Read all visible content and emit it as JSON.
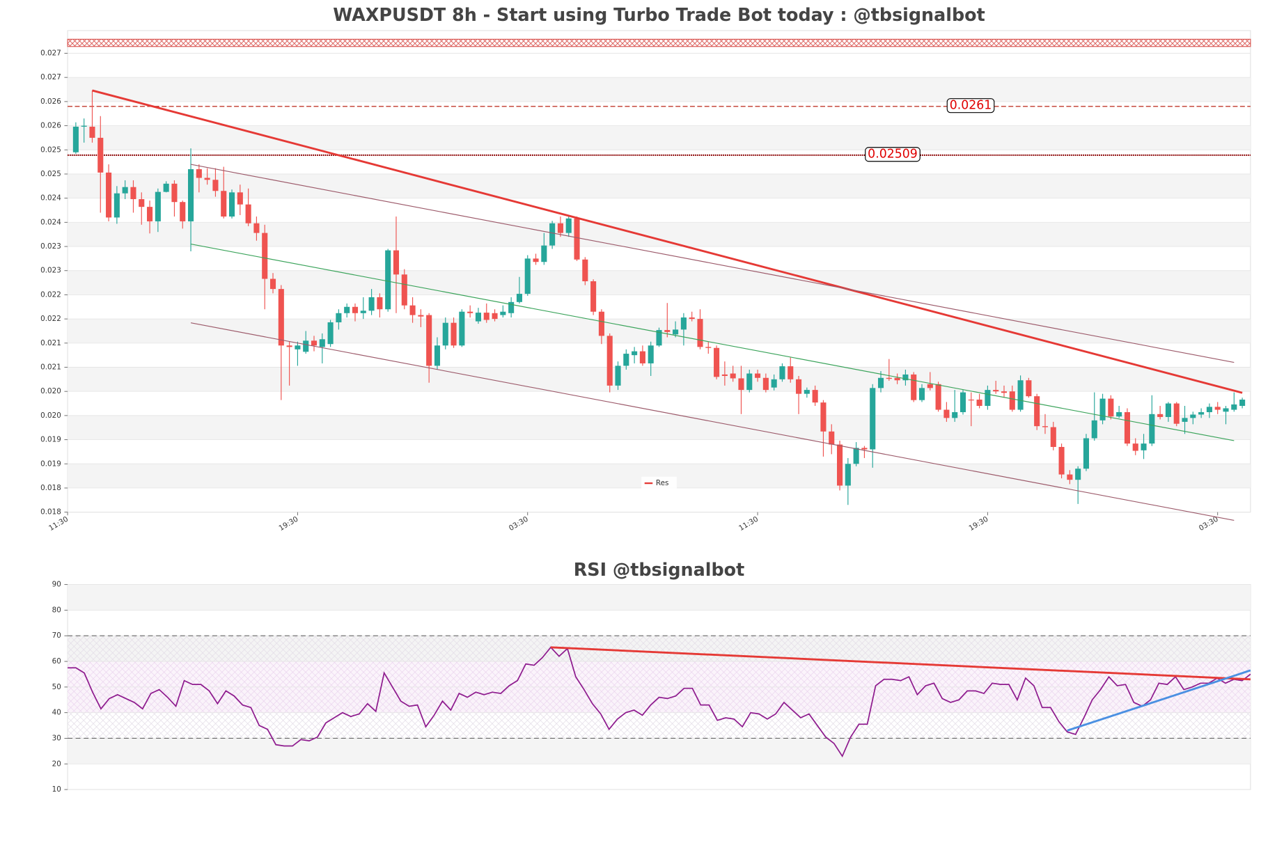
{
  "chart_data": [
    {
      "type": "candlestick",
      "title": "WAXPUSDT 8h - Start using Turbo Trade Bot today : @tbsignalbot",
      "up_color": "#26a69a",
      "down_color": "#ef5350",
      "xlim": [
        -1,
        143
      ],
      "xticks": [
        {
          "value": -1,
          "label": "11:30"
        },
        {
          "value": 27,
          "label": "19:30"
        },
        {
          "value": 55,
          "label": "03:30"
        },
        {
          "value": 83,
          "label": "11:30"
        },
        {
          "value": 111,
          "label": "19:30"
        },
        {
          "value": 139,
          "label": "03:30"
        }
      ],
      "ylim": [
        0.0177,
        0.02767
      ],
      "yticks": [
        {
          "value": 0.0177,
          "label": "0.018"
        },
        {
          "value": 0.0182,
          "label": "0.018"
        },
        {
          "value": 0.0187,
          "label": "0.019"
        },
        {
          "value": 0.0192,
          "label": "0.019"
        },
        {
          "value": 0.0197,
          "label": "0.020"
        },
        {
          "value": 0.0202,
          "label": "0.020"
        },
        {
          "value": 0.0207,
          "label": "0.021"
        },
        {
          "value": 0.0212,
          "label": "0.021"
        },
        {
          "value": 0.0217,
          "label": "0.022"
        },
        {
          "value": 0.0222,
          "label": "0.022"
        },
        {
          "value": 0.0227,
          "label": "0.023"
        },
        {
          "value": 0.0232,
          "label": "0.023"
        },
        {
          "value": 0.0237,
          "label": "0.024"
        },
        {
          "value": 0.0242,
          "label": "0.024"
        },
        {
          "value": 0.0247,
          "label": "0.025"
        },
        {
          "value": 0.0252,
          "label": "0.025"
        },
        {
          "value": 0.0257,
          "label": "0.026"
        },
        {
          "value": 0.0262,
          "label": "0.026"
        },
        {
          "value": 0.0267,
          "label": "0.027"
        },
        {
          "value": 0.0272,
          "label": "0.027"
        }
      ],
      "grid": true,
      "legend": "lower center",
      "zone": [
        0.02734,
        0.02749
      ],
      "zone_color": "#d9534f",
      "hlines": [
        {
          "value": 0.0261,
          "color": "#c0392b",
          "style": "dashed"
        },
        {
          "value": 0.02509,
          "color": "#8b0000",
          "style": "dotted"
        }
      ],
      "trendlines": [
        {
          "name": "Res",
          "color": "#e53935",
          "width": 2.5,
          "x": [
            2,
            142
          ],
          "y": [
            0.02643,
            0.02017
          ]
        },
        {
          "color": "#9c5a6a",
          "width": 1,
          "x": [
            14,
            141
          ],
          "y": [
            0.0249,
            0.0208
          ]
        },
        {
          "color": "#3aa35a",
          "width": 1,
          "x": [
            14,
            141
          ],
          "y": [
            0.02325,
            0.01918
          ]
        },
        {
          "color": "#9c5a6a",
          "width": 1,
          "x": [
            14,
            141
          ],
          "y": [
            0.02162,
            0.01753
          ]
        }
      ],
      "candles": [
        [
          0.02515,
          0.02577,
          0.02512,
          0.02568
        ],
        [
          0.02568,
          0.02585,
          0.02535,
          0.0257
        ],
        [
          0.02568,
          0.02643,
          0.02535,
          0.02545
        ],
        [
          0.02545,
          0.0259,
          0.0239,
          0.02473
        ],
        [
          0.02473,
          0.0249,
          0.02372,
          0.0238
        ],
        [
          0.0238,
          0.02445,
          0.02367,
          0.0243
        ],
        [
          0.0243,
          0.02457,
          0.02418,
          0.02443
        ],
        [
          0.02443,
          0.02457,
          0.0239,
          0.02418
        ],
        [
          0.02418,
          0.02432,
          0.02365,
          0.02402
        ],
        [
          0.02402,
          0.02415,
          0.02347,
          0.02372
        ],
        [
          0.02372,
          0.0244,
          0.0235,
          0.02433
        ],
        [
          0.02433,
          0.02455,
          0.02432,
          0.0245
        ],
        [
          0.0245,
          0.02457,
          0.02382,
          0.02412
        ],
        [
          0.02412,
          0.02415,
          0.02357,
          0.02372
        ],
        [
          0.02372,
          0.02523,
          0.0231,
          0.0248
        ],
        [
          0.0248,
          0.0249,
          0.02432,
          0.02462
        ],
        [
          0.02462,
          0.02482,
          0.02448,
          0.02458
        ],
        [
          0.02458,
          0.02482,
          0.02423,
          0.02435
        ],
        [
          0.02435,
          0.02485,
          0.02378,
          0.02382
        ],
        [
          0.02382,
          0.02438,
          0.02378,
          0.02432
        ],
        [
          0.02432,
          0.02448,
          0.02385,
          0.02407
        ],
        [
          0.02407,
          0.0244,
          0.02362,
          0.02368
        ],
        [
          0.02368,
          0.02382,
          0.02332,
          0.02348
        ],
        [
          0.02348,
          0.02365,
          0.0219,
          0.02253
        ],
        [
          0.02253,
          0.02265,
          0.02223,
          0.02232
        ],
        [
          0.02232,
          0.0224,
          0.02002,
          0.02115
        ],
        [
          0.02115,
          0.02123,
          0.02032,
          0.02112
        ],
        [
          0.02107,
          0.02123,
          0.02073,
          0.02115
        ],
        [
          0.02102,
          0.02145,
          0.02098,
          0.02125
        ],
        [
          0.02125,
          0.02135,
          0.02103,
          0.02115
        ],
        [
          0.02112,
          0.0214,
          0.02078,
          0.02128
        ],
        [
          0.02118,
          0.02168,
          0.02112,
          0.02163
        ],
        [
          0.02163,
          0.0219,
          0.02148,
          0.02182
        ],
        [
          0.02182,
          0.02202,
          0.02173,
          0.02195
        ],
        [
          0.02195,
          0.02202,
          0.02165,
          0.02182
        ],
        [
          0.02182,
          0.02215,
          0.0217,
          0.02187
        ],
        [
          0.02187,
          0.02232,
          0.02178,
          0.02215
        ],
        [
          0.02215,
          0.02223,
          0.02173,
          0.0219
        ],
        [
          0.0219,
          0.02315,
          0.02185,
          0.02312
        ],
        [
          0.02312,
          0.02382,
          0.02182,
          0.02262
        ],
        [
          0.02262,
          0.02273,
          0.0219,
          0.02198
        ],
        [
          0.02198,
          0.02215,
          0.02162,
          0.02178
        ],
        [
          0.02178,
          0.0219,
          0.02153,
          0.02175
        ],
        [
          0.02178,
          0.02182,
          0.02038,
          0.02073
        ],
        [
          0.02073,
          0.02132,
          0.02065,
          0.02115
        ],
        [
          0.02115,
          0.02173,
          0.02107,
          0.02162
        ],
        [
          0.02162,
          0.02173,
          0.0211,
          0.02115
        ],
        [
          0.02115,
          0.0219,
          0.02112,
          0.02185
        ],
        [
          0.02185,
          0.02198,
          0.02173,
          0.02182
        ],
        [
          0.02165,
          0.02193,
          0.0216,
          0.02183
        ],
        [
          0.02183,
          0.02202,
          0.02162,
          0.02168
        ],
        [
          0.02182,
          0.0219,
          0.02165,
          0.0217
        ],
        [
          0.02178,
          0.02198,
          0.02173,
          0.02185
        ],
        [
          0.02182,
          0.02215,
          0.02173,
          0.02205
        ],
        [
          0.02205,
          0.02257,
          0.02202,
          0.02222
        ],
        [
          0.02222,
          0.02302,
          0.02218,
          0.02295
        ],
        [
          0.02295,
          0.02305,
          0.02282,
          0.02288
        ],
        [
          0.02288,
          0.02348,
          0.02282,
          0.02322
        ],
        [
          0.02322,
          0.02373,
          0.02315,
          0.02368
        ],
        [
          0.02368,
          0.02382,
          0.0234,
          0.02348
        ],
        [
          0.02348,
          0.02385,
          0.0234,
          0.02378
        ],
        [
          0.02378,
          0.02382,
          0.0229,
          0.02293
        ],
        [
          0.02293,
          0.02298,
          0.0224,
          0.02248
        ],
        [
          0.02248,
          0.02252,
          0.02178,
          0.02185
        ],
        [
          0.02185,
          0.0219,
          0.02118,
          0.02135
        ],
        [
          0.02135,
          0.0214,
          0.02018,
          0.02032
        ],
        [
          0.02032,
          0.02082,
          0.02023,
          0.02073
        ],
        [
          0.02073,
          0.02107,
          0.02065,
          0.02098
        ],
        [
          0.02095,
          0.02112,
          0.02078,
          0.02103
        ],
        [
          0.02103,
          0.02115,
          0.02073,
          0.02078
        ],
        [
          0.02078,
          0.02123,
          0.02052,
          0.02115
        ],
        [
          0.02115,
          0.02152,
          0.02112,
          0.02147
        ],
        [
          0.02147,
          0.02203,
          0.02132,
          0.02143
        ],
        [
          0.02138,
          0.02165,
          0.02132,
          0.02148
        ],
        [
          0.02148,
          0.02182,
          0.02115,
          0.02173
        ],
        [
          0.02173,
          0.02185,
          0.02165,
          0.0217
        ],
        [
          0.0217,
          0.0219,
          0.02107,
          0.02112
        ],
        [
          0.02112,
          0.02123,
          0.02098,
          0.0211
        ],
        [
          0.0211,
          0.02115,
          0.02045,
          0.0205
        ],
        [
          0.02055,
          0.02082,
          0.02032,
          0.02052
        ],
        [
          0.02057,
          0.02073,
          0.0204,
          0.02047
        ],
        [
          0.02047,
          0.02073,
          0.01973,
          0.02023
        ],
        [
          0.02023,
          0.02065,
          0.02018,
          0.02057
        ],
        [
          0.02057,
          0.02065,
          0.0204,
          0.02048
        ],
        [
          0.02048,
          0.02057,
          0.02018,
          0.02023
        ],
        [
          0.02028,
          0.02055,
          0.02022,
          0.02045
        ],
        [
          0.02045,
          0.02078,
          0.0204,
          0.02072
        ],
        [
          0.02072,
          0.0209,
          0.02038,
          0.02045
        ],
        [
          0.02045,
          0.02052,
          0.01973,
          0.02015
        ],
        [
          0.02015,
          0.02028,
          0.02007,
          0.02023
        ],
        [
          0.02023,
          0.02032,
          0.0199,
          0.01997
        ],
        [
          0.01997,
          0.02002,
          0.01885,
          0.01937
        ],
        [
          0.01937,
          0.01952,
          0.0189,
          0.0191
        ],
        [
          0.0191,
          0.01918,
          0.01815,
          0.01825
        ],
        [
          0.01825,
          0.01882,
          0.01785,
          0.0187
        ],
        [
          0.0187,
          0.01915,
          0.01865,
          0.01903
        ],
        [
          0.01903,
          0.01907,
          0.01882,
          0.019
        ],
        [
          0.019,
          0.02035,
          0.01862,
          0.02027
        ],
        [
          0.02027,
          0.02062,
          0.02018,
          0.02048
        ],
        [
          0.02048,
          0.02087,
          0.02042,
          0.02046
        ],
        [
          0.02048,
          0.02057,
          0.02035,
          0.02043
        ],
        [
          0.02043,
          0.02065,
          0.02032,
          0.02055
        ],
        [
          0.02055,
          0.0206,
          0.01998,
          0.02002
        ],
        [
          0.02002,
          0.02035,
          0.01998,
          0.02027
        ],
        [
          0.02035,
          0.0206,
          0.02022,
          0.02027
        ],
        [
          0.02035,
          0.0204,
          0.01978,
          0.01982
        ],
        [
          0.01982,
          0.01998,
          0.01957,
          0.01965
        ],
        [
          0.01965,
          0.02023,
          0.01957,
          0.01977
        ],
        [
          0.01977,
          0.02023,
          0.01972,
          0.02018
        ],
        [
          0.02003,
          0.02018,
          0.01948,
          0.02002
        ],
        [
          0.02003,
          0.02015,
          0.01985,
          0.0199
        ],
        [
          0.0199,
          0.02032,
          0.01982,
          0.02023
        ],
        [
          0.02023,
          0.02042,
          0.02015,
          0.0202
        ],
        [
          0.0202,
          0.02032,
          0.02007,
          0.02017
        ],
        [
          0.0202,
          0.02032,
          0.01978,
          0.01982
        ],
        [
          0.01982,
          0.02053,
          0.01978,
          0.02043
        ],
        [
          0.02043,
          0.02048,
          0.02007,
          0.0201
        ],
        [
          0.0201,
          0.02015,
          0.0194,
          0.01948
        ],
        [
          0.01948,
          0.01973,
          0.01932,
          0.01946
        ],
        [
          0.01946,
          0.01957,
          0.01898,
          0.01905
        ],
        [
          0.01905,
          0.01912,
          0.0184,
          0.01848
        ],
        [
          0.01848,
          0.01857,
          0.01828,
          0.01837
        ],
        [
          0.01837,
          0.01865,
          0.01787,
          0.0186
        ],
        [
          0.0186,
          0.01932,
          0.01855,
          0.01923
        ],
        [
          0.01923,
          0.02018,
          0.01918,
          0.0196
        ],
        [
          0.0196,
          0.02015,
          0.01952,
          0.02005
        ],
        [
          0.02005,
          0.02012,
          0.01962,
          0.01968
        ],
        [
          0.01968,
          0.0199,
          0.01965,
          0.01977
        ],
        [
          0.01977,
          0.01985,
          0.01907,
          0.01912
        ],
        [
          0.01912,
          0.01923,
          0.01888,
          0.01897
        ],
        [
          0.01898,
          0.01932,
          0.0188,
          0.01912
        ],
        [
          0.01912,
          0.02012,
          0.01907,
          0.01973
        ],
        [
          0.01973,
          0.0199,
          0.01962,
          0.01967
        ],
        [
          0.01967,
          0.01998,
          0.01957,
          0.01995
        ],
        [
          0.01995,
          0.01998,
          0.01948,
          0.01953
        ],
        [
          0.01957,
          0.0199,
          0.01932,
          0.01965
        ],
        [
          0.01965,
          0.01978,
          0.01952,
          0.01972
        ],
        [
          0.01972,
          0.01985,
          0.01965,
          0.01977
        ],
        [
          0.01977,
          0.01995,
          0.01965,
          0.01988
        ],
        [
          0.01988,
          0.01998,
          0.01973,
          0.01982
        ],
        [
          0.01978,
          0.0199,
          0.01952,
          0.01985
        ],
        [
          0.01982,
          0.02018,
          0.01978,
          0.01993
        ],
        [
          0.0199,
          0.02007,
          0.01985,
          0.02003
        ]
      ]
    },
    {
      "type": "line",
      "title": "RSI @tbsignalbot",
      "color": "#8e1b8e",
      "xlim": [
        0,
        142
      ],
      "ylim": [
        10,
        90
      ],
      "yticks": [
        10,
        20,
        30,
        40,
        50,
        60,
        70,
        80,
        90
      ],
      "grid": true,
      "levels": [
        70,
        30
      ],
      "band": [
        40,
        60
      ],
      "trendlines": [
        {
          "color": "#e53935",
          "width": 2.5,
          "x": [
            58,
            142
          ],
          "y": [
            65.5,
            53
          ]
        },
        {
          "color": "#4a90e2",
          "width": 2.5,
          "x": [
            120,
            142
          ],
          "y": [
            33,
            56.5
          ]
        }
      ],
      "values": [
        57.5,
        57.5,
        55.5,
        48,
        41.5,
        45.5,
        47,
        45.5,
        44,
        41.5,
        47.5,
        49,
        46,
        42.5,
        52.5,
        51,
        51,
        48.5,
        43.5,
        48.5,
        46.5,
        43,
        42,
        35,
        33.5,
        27.5,
        27,
        27,
        29.5,
        29,
        30.5,
        36,
        38,
        40,
        38.5,
        39.5,
        43.5,
        40.5,
        55.5,
        50,
        44.5,
        42.5,
        43,
        34.5,
        39,
        44.5,
        41,
        47.5,
        46,
        48,
        47,
        48,
        47.5,
        50.5,
        52.5,
        59,
        58.5,
        61.5,
        65.5,
        62,
        65,
        54,
        49,
        43.5,
        39.5,
        33.5,
        37.5,
        40,
        41,
        39,
        43,
        46,
        45.5,
        46.5,
        49.5,
        49.5,
        43,
        43,
        37,
        38,
        37.5,
        34.5,
        40,
        39.5,
        37.5,
        39.5,
        44,
        41,
        38,
        39.5,
        35,
        30.5,
        28,
        23,
        30.5,
        35.5,
        35.5,
        50.5,
        53,
        53,
        52.5,
        54,
        47,
        50.5,
        51.5,
        45.5,
        44,
        45,
        48.5,
        48.5,
        47.5,
        51.5,
        51,
        51,
        45,
        53.5,
        50.5,
        42,
        42,
        36.5,
        32.5,
        31.5,
        38,
        45,
        49,
        54,
        50.5,
        51,
        44,
        42.5,
        45,
        51.5,
        51,
        54,
        49,
        50,
        51.5,
        51.5,
        53.5,
        51.5,
        53,
        52.5,
        55
      ]
    }
  ]
}
